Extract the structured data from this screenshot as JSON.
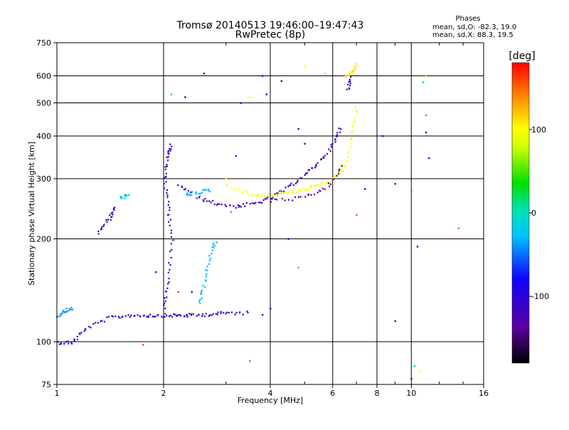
{
  "chart_data": {
    "type": "scatter",
    "title": "Tromsø 20140513 19:46:00–19:47:43",
    "subtitle": "RwPretec (8p)",
    "xlabel": "Frequency [MHz]",
    "ylabel": "Stationary phase Virtual Height [km]",
    "x_scale": "log",
    "y_scale": "log",
    "xlim": [
      1,
      16
    ],
    "ylim": [
      75,
      750
    ],
    "x_ticks": [
      "1",
      "2",
      "4",
      "6",
      "8",
      "10",
      "16"
    ],
    "x_tick_values": [
      1,
      2,
      4,
      6,
      8,
      10,
      16
    ],
    "y_ticks": [
      "75",
      "100",
      "200",
      "300",
      "400",
      "500",
      "600",
      "750"
    ],
    "y_tick_values": [
      75,
      100,
      200,
      300,
      400,
      500,
      600,
      750
    ],
    "grid": true,
    "stats": {
      "heading": "Phases",
      "o_line": "mean, sd,O: -82.3, 19.0",
      "x_line": "mean, sd,X: 88.3, 19.5"
    },
    "colorbar": {
      "label": "[deg]",
      "range": [
        -180,
        180
      ],
      "ticks": [
        "100",
        "0",
        "-100"
      ],
      "tick_values": [
        100,
        0,
        -100
      ],
      "colormap": "rainbow"
    },
    "series": [
      {
        "traces": [
          {
            "x": [
              1.0,
              1.1,
              1.2,
              1.4,
              1.6,
              1.8,
              2.0,
              2.2,
              2.4,
              2.7,
              3.0,
              3.5
            ],
            "y": [
              100,
              100,
              110,
              118,
              120,
              120,
              120,
              120,
              120,
              121,
              122,
              122
            ],
            "phase": -110
          },
          {
            "x": [
              1.0,
              1.05,
              1.1
            ],
            "y": [
              120,
              124,
              126
            ],
            "phase": -40
          },
          {
            "x": [
              2.0,
              2.05,
              2.1,
              2.05,
              2.0,
              2.05,
              2.1
            ],
            "y": [
              125,
              150,
              200,
              250,
              300,
              350,
              380
            ],
            "phase": -110
          },
          {
            "x": [
              2.2,
              2.5,
              2.8,
              3.2,
              3.6,
              4.0,
              4.5,
              5.0,
              5.5,
              6.0,
              6.3
            ],
            "y": [
              290,
              265,
              255,
              250,
              255,
              265,
              285,
              310,
              340,
              380,
              430
            ],
            "phase": -120
          },
          {
            "x": [
              3.0,
              3.5,
              4.0,
              4.5,
              5.0,
              5.5,
              6.0,
              6.5,
              6.8,
              7.0
            ],
            "y": [
              290,
              270,
              270,
              275,
              280,
              290,
              300,
              330,
              400,
              500
            ],
            "phase": 100
          },
          {
            "x": [
              4.0,
              5.0,
              5.8,
              6.4
            ],
            "y": [
              260,
              265,
              285,
              330
            ],
            "phase": -140
          },
          {
            "x": [
              1.3,
              1.4,
              1.45
            ],
            "y": [
              210,
              230,
              250
            ],
            "phase": -110
          },
          {
            "x": [
              1.5,
              1.6
            ],
            "y": [
              265,
              270
            ],
            "phase": -20
          },
          {
            "x": [
              2.3,
              2.5,
              2.7
            ],
            "y": [
              270,
              275,
              280
            ],
            "phase": -30
          },
          {
            "x": [
              2.5,
              2.6,
              2.7,
              2.8
            ],
            "y": [
              130,
              150,
              180,
              200
            ],
            "phase": -30
          },
          {
            "x": [
              6.5,
              6.8,
              7.0
            ],
            "y": [
              600,
              620,
              650
            ],
            "phase": 110
          },
          {
            "x": [
              6.6,
              6.7
            ],
            "y": [
              550,
              600
            ],
            "phase": -110
          }
        ],
        "scatter": [
          {
            "x": 2.6,
            "y": 610,
            "phase": -110
          },
          {
            "x": 2.1,
            "y": 530,
            "phase": -20
          },
          {
            "x": 2.3,
            "y": 520,
            "phase": -110
          },
          {
            "x": 3.8,
            "y": 600,
            "phase": -110
          },
          {
            "x": 3.9,
            "y": 530,
            "phase": -110
          },
          {
            "x": 4.3,
            "y": 580,
            "phase": -110
          },
          {
            "x": 5.0,
            "y": 640,
            "phase": 100
          },
          {
            "x": 5.7,
            "y": 610,
            "phase": 110
          },
          {
            "x": 3.3,
            "y": 500,
            "phase": -110
          },
          {
            "x": 3.5,
            "y": 520,
            "phase": 100
          },
          {
            "x": 4.5,
            "y": 200,
            "phase": -110
          },
          {
            "x": 4.8,
            "y": 165,
            "phase": 140
          },
          {
            "x": 4.8,
            "y": 420,
            "phase": -120
          },
          {
            "x": 5.0,
            "y": 380,
            "phase": -120
          },
          {
            "x": 7.0,
            "y": 235,
            "phase": 150
          },
          {
            "x": 7.4,
            "y": 280,
            "phase": -110
          },
          {
            "x": 8.3,
            "y": 400,
            "phase": -120
          },
          {
            "x": 9.0,
            "y": 290,
            "phase": -120
          },
          {
            "x": 9.0,
            "y": 115,
            "phase": -120
          },
          {
            "x": 10.0,
            "y": 78,
            "phase": -110
          },
          {
            "x": 10.2,
            "y": 85,
            "phase": 20
          },
          {
            "x": 10.6,
            "y": 82,
            "phase": 100
          },
          {
            "x": 10.1,
            "y": 275,
            "phase": 100
          },
          {
            "x": 10.4,
            "y": 190,
            "phase": -110
          },
          {
            "x": 10.8,
            "y": 575,
            "phase": -20
          },
          {
            "x": 11.0,
            "y": 600,
            "phase": 120
          },
          {
            "x": 11.0,
            "y": 460,
            "phase": 150
          },
          {
            "x": 11.0,
            "y": 410,
            "phase": -110
          },
          {
            "x": 11.2,
            "y": 345,
            "phase": -110
          },
          {
            "x": 13.6,
            "y": 215,
            "phase": 150
          },
          {
            "x": 3.5,
            "y": 88,
            "phase": 150
          },
          {
            "x": 1.75,
            "y": 98,
            "phase": 160
          },
          {
            "x": 3.0,
            "y": 300,
            "phase": 100
          },
          {
            "x": 3.2,
            "y": 350,
            "phase": -110
          },
          {
            "x": 3.8,
            "y": 120,
            "phase": -110
          },
          {
            "x": 4.0,
            "y": 125,
            "phase": -110
          },
          {
            "x": 3.1,
            "y": 240,
            "phase": -30
          },
          {
            "x": 2.4,
            "y": 140,
            "phase": -110
          },
          {
            "x": 1.9,
            "y": 160,
            "phase": -110
          },
          {
            "x": 2.2,
            "y": 140,
            "phase": 160
          }
        ]
      }
    ]
  }
}
